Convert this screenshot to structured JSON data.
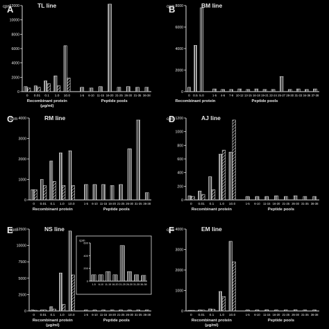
{
  "chart_data": [
    {
      "type": "bar",
      "panel_letter": "A",
      "title": "TL line",
      "ylabel": "cpm",
      "ylim": [
        0,
        12000
      ],
      "yticks": [
        0,
        2000,
        4000,
        6000,
        8000,
        10000,
        12000
      ],
      "protein_categories": [
        "0",
        "0.01",
        "0.1",
        "1.0",
        "10.0"
      ],
      "peptide_categories": [
        "1-5",
        "6-10",
        "11-15",
        "16-20",
        "21-25",
        "26-30",
        "31-35",
        "36-38"
      ],
      "xlabel_protein": "Recombinant protein (μg/ml)",
      "xlabel_peptide": "Peptide pools",
      "series": [
        {
          "values": [
            700,
            800,
            1500,
            2200,
            6400
          ]
        },
        {
          "values": [
            500,
            600,
            1100,
            800,
            1900
          ]
        }
      ],
      "peptide_values": [
        600,
        500,
        700,
        12200,
        600,
        700,
        600,
        600
      ]
    },
    {
      "type": "bar",
      "panel_letter": "B",
      "title": "BM line",
      "ylabel": "cpm",
      "ylim": [
        0,
        8000
      ],
      "yticks": [
        0,
        2000,
        4000,
        6000,
        8000
      ],
      "protein_categories": [
        "0",
        "0.5",
        "5.0"
      ],
      "peptide_categories": [
        "1-5",
        "4-6",
        "7-9",
        "10-12",
        "13-15",
        "16-18",
        "19-21",
        "22-24",
        "25-27",
        "28-30",
        "31-33",
        "34-36",
        "37-38"
      ],
      "xlabel_protein": "Recombinant protein",
      "xlabel_peptide": "Peptide pools",
      "series": [
        {
          "values": [
            400,
            4300,
            7800
          ]
        }
      ],
      "peptide_values": [
        250,
        200,
        200,
        250,
        200,
        250,
        200,
        200,
        1400,
        200,
        250,
        200,
        250
      ]
    },
    {
      "type": "bar",
      "panel_letter": "C",
      "title": "RM line",
      "ylabel": "cpm",
      "ylim": [
        0,
        4000
      ],
      "yticks": [
        0,
        1000,
        2000,
        3000,
        4000
      ],
      "protein_categories": [
        "0",
        "0.01",
        "0.1",
        "1.0",
        "10.0"
      ],
      "peptide_categories": [
        "1-5",
        "6-10",
        "11-15",
        "16-20",
        "21-25",
        "26-30",
        "31-35",
        "36-38"
      ],
      "xlabel_protein": "Recombinant protein",
      "xlabel_peptide": "Peptide pools",
      "series": [
        {
          "values": [
            500,
            1000,
            1900,
            2300,
            2400
          ]
        },
        {
          "values": [
            500,
            700,
            900,
            700,
            700
          ]
        }
      ],
      "peptide_values": [
        750,
        750,
        750,
        700,
        750,
        2500,
        3900,
        350
      ]
    },
    {
      "type": "bar",
      "panel_letter": "D",
      "title": "AJ line",
      "ylabel": "cpm",
      "ylim": [
        0,
        1200
      ],
      "yticks": [
        0,
        200,
        400,
        600,
        800,
        1000,
        1200
      ],
      "protein_categories": [
        "0",
        "0.01",
        "0.1",
        "1.0",
        "10.0"
      ],
      "peptide_categories": [
        "1-5",
        "6-10",
        "11-15",
        "16-20",
        "21-25",
        "26-30",
        "31-35",
        "36-38"
      ],
      "xlabel_protein": "Recombinant protein",
      "xlabel_peptide": "Peptide pools",
      "series": [
        {
          "values": [
            60,
            130,
            340,
            670,
            700
          ]
        },
        {
          "values": [
            50,
            80,
            150,
            730,
            1170
          ]
        }
      ],
      "peptide_values": [
        50,
        50,
        50,
        60,
        50,
        60,
        50,
        50
      ]
    },
    {
      "type": "bar",
      "panel_letter": "E",
      "title": "NS line",
      "ylabel": "cpm",
      "ylim": [
        0,
        12500
      ],
      "yticks": [
        0,
        2500,
        5000,
        7500,
        10000,
        12500
      ],
      "protein_categories": [
        "0",
        "0.01",
        "0.1",
        "1.0",
        "10.0"
      ],
      "peptide_categories": [
        "1-5",
        "6-10",
        "11-15",
        "16-20",
        "21-25",
        "26-30",
        "31-35",
        "36-38"
      ],
      "xlabel_protein": "Recombinant protein (μg/ml)",
      "xlabel_peptide": "Peptide pools",
      "series": [
        {
          "values": [
            150,
            150,
            650,
            5800,
            12200
          ]
        },
        {
          "values": [
            100,
            150,
            300,
            1000,
            5500
          ]
        }
      ],
      "peptide_values": [
        150,
        150,
        150,
        150,
        150,
        150,
        150,
        150
      ],
      "inset": {
        "ylabel": "cpm",
        "ylim": [
          0,
          600
        ],
        "yticks": [
          0,
          200,
          400,
          600
        ],
        "categories": [
          "1-5",
          "6-10",
          "11-15",
          "16-20",
          "21-25",
          "26-30",
          "31-35",
          "36-38"
        ],
        "values": [
          100,
          100,
          150,
          100,
          560,
          150,
          100,
          90
        ]
      }
    },
    {
      "type": "bar",
      "panel_letter": "F",
      "title": "EM line",
      "ylabel": "cpm",
      "ylim": [
        0,
        4000
      ],
      "yticks": [
        0,
        1000,
        2000,
        3000,
        4000
      ],
      "protein_categories": [
        "0",
        "0.01",
        "0.1",
        "1.0",
        "10.0"
      ],
      "peptide_categories": [
        "1-5",
        "6-10",
        "11-15",
        "16-20",
        "21-25",
        "26-30",
        "31-35",
        "36-38"
      ],
      "xlabel_protein": "Recombinant protein (μg/ml)",
      "xlabel_peptide": "Peptide pools",
      "series": [
        {
          "values": [
            30,
            50,
            100,
            950,
            3400
          ]
        },
        {
          "values": [
            30,
            40,
            80,
            700,
            2400
          ]
        }
      ],
      "peptide_values": [
        50,
        50,
        60,
        50,
        50,
        60,
        50,
        50
      ]
    }
  ]
}
